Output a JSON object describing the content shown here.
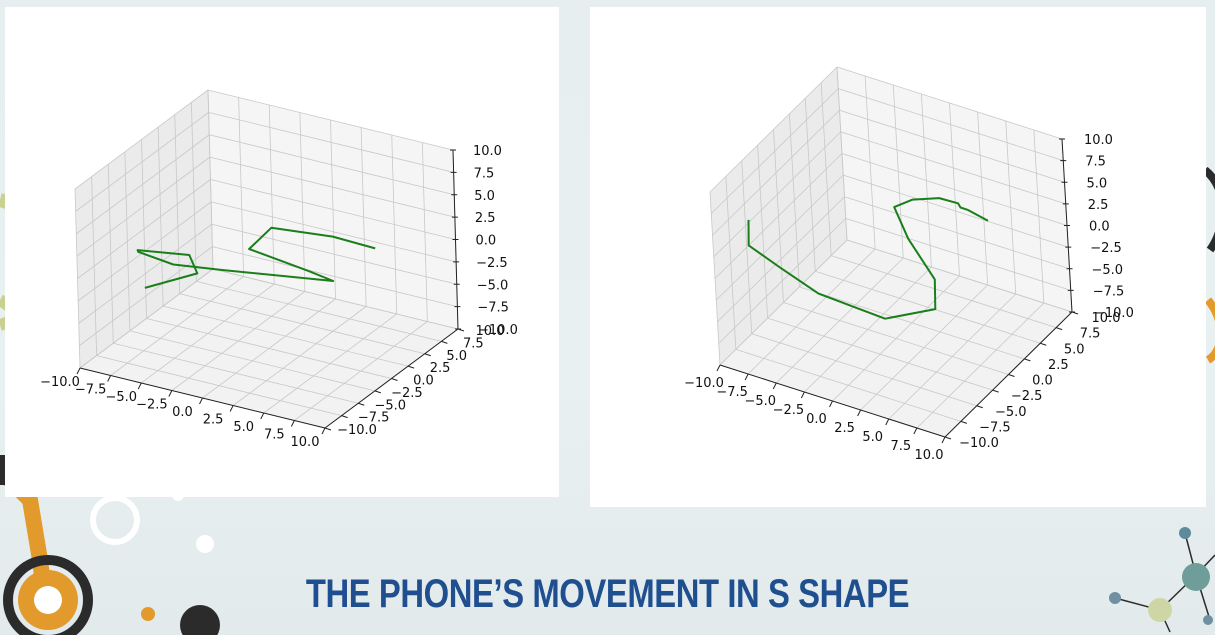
{
  "slide": {
    "title": "THE PHONE’S MOVEMENT IN S SHAPE",
    "accent_colors": {
      "title": "#1f4f8f",
      "orange": "#e29a2c",
      "dark": "#222222"
    }
  },
  "chart_data": [
    {
      "type": "line3d",
      "series": [
        {
          "color": "#1a7f1a",
          "points": [
            [
              5.5,
              6.2,
              -0.4
            ],
            [
              2.6,
              5.2,
              0.5
            ],
            [
              -1.6,
              3.7,
              0.9
            ],
            [
              -2.8,
              2.5,
              -1.2
            ],
            [
              1.3,
              3.8,
              -3.0
            ],
            [
              3.2,
              4.0,
              -3.6
            ],
            [
              -4.0,
              0.6,
              -2.9
            ],
            [
              -7.0,
              -1.2,
              -2.3
            ],
            [
              -9.3,
              -2.2,
              -1.1
            ],
            [
              -9.4,
              -2.1,
              -1.0
            ],
            [
              -6.5,
              0.3,
              -1.9
            ],
            [
              -6.0,
              0.5,
              -3.9
            ],
            [
              -9.0,
              -1.9,
              -5.2
            ]
          ]
        }
      ],
      "xticks": [
        "−10.0",
        "−7.5",
        "−5.0",
        "−2.5",
        "0.0",
        "2.5",
        "5.0",
        "7.5",
        "10.0"
      ],
      "yticks": [
        "−10.0",
        "−7.5",
        "−5.0",
        "−2.5",
        "0.0",
        "2.5",
        "5.0",
        "7.5",
        "10.0"
      ],
      "zticks": [
        "−10.0",
        "−7.5",
        "−5.0",
        "−2.5",
        "0.0",
        "2.5",
        "5.0",
        "7.5",
        "10.0"
      ],
      "xlim": [
        -10,
        10
      ],
      "ylim": [
        -10,
        10
      ],
      "zlim": [
        -10,
        10
      ],
      "grid": true
    },
    {
      "type": "line3d",
      "series": [
        {
          "color": "#1a7f1a",
          "points": [
            [
              5.0,
              6.5,
              1.0
            ],
            [
              3.5,
              6.0,
              2.0
            ],
            [
              3.0,
              5.8,
              2.2
            ],
            [
              2.8,
              5.8,
              2.6
            ],
            [
              1.3,
              5.5,
              2.8
            ],
            [
              -0.5,
              4.5,
              2.6
            ],
            [
              -1.6,
              3.5,
              2.0
            ],
            [
              -0.5,
              3.5,
              -1.2
            ],
            [
              2.0,
              3.0,
              -4.5
            ],
            [
              2.5,
              2.0,
              -7.0
            ],
            [
              -0.4,
              -0.8,
              -7.3
            ],
            [
              -5.2,
              -2.6,
              -5.1
            ],
            [
              -8.0,
              -3.5,
              -2.6
            ],
            [
              -10.0,
              -4.7,
              0.0
            ],
            [
              -10.0,
              -4.5,
              2.8
            ]
          ]
        }
      ],
      "xticks": [
        "−10.0",
        "−7.5",
        "−5.0",
        "−2.5",
        "0.0",
        "2.5",
        "5.0",
        "7.5",
        "10.0"
      ],
      "yticks": [
        "−10.0",
        "−7.5",
        "−5.0",
        "−2.5",
        "0.0",
        "2.5",
        "5.0",
        "7.5",
        "10.0"
      ],
      "zticks": [
        "−10.0",
        "−7.5",
        "−5.0",
        "−2.5",
        "0.0",
        "2.5",
        "5.0",
        "7.5",
        "10.0"
      ],
      "xlim": [
        -10,
        10
      ],
      "ylim": [
        -10,
        10
      ],
      "zlim": [
        -10,
        10
      ],
      "grid": true
    }
  ]
}
